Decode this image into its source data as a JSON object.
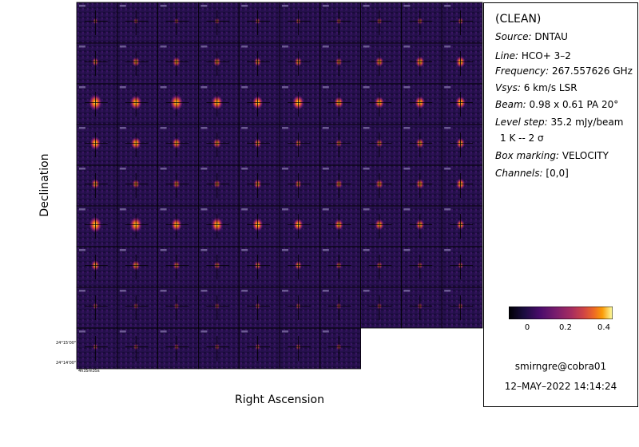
{
  "chart_data": {
    "type": "heatmap",
    "title": "(CLEAN)",
    "xlabel": "Right Ascension",
    "ylabel": "Declination",
    "layout": {
      "columns": 10,
      "rows_full": 8,
      "last_row_panels": 7
    },
    "peak_intensity_by_row": [
      [
        0.03,
        0.03,
        0.03,
        0.04,
        0.04,
        0.04,
        0.04,
        0.05,
        0.06,
        0.06
      ],
      [
        0.12,
        0.16,
        0.18,
        0.15,
        0.14,
        0.15,
        0.12,
        0.18,
        0.22,
        0.24
      ],
      [
        0.42,
        0.35,
        0.4,
        0.34,
        0.3,
        0.35,
        0.24,
        0.25,
        0.28,
        0.27
      ],
      [
        0.3,
        0.27,
        0.22,
        0.18,
        0.15,
        0.1,
        0.1,
        0.12,
        0.18,
        0.2
      ],
      [
        0.18,
        0.14,
        0.14,
        0.12,
        0.16,
        0.12,
        0.14,
        0.16,
        0.18,
        0.22
      ],
      [
        0.4,
        0.38,
        0.3,
        0.36,
        0.3,
        0.26,
        0.22,
        0.22,
        0.2,
        0.18
      ],
      [
        0.2,
        0.18,
        0.12,
        0.1,
        0.12,
        0.14,
        0.08,
        0.08,
        0.06,
        0.06
      ],
      [
        0.04,
        0.04,
        0.04,
        0.04,
        0.04,
        0.04,
        0.04,
        0.04,
        0.04,
        0.04
      ],
      [
        0.04,
        0.04,
        0.04,
        0.04,
        0.04,
        0.04,
        0.04
      ]
    ],
    "y_tick_labels": [
      "24°15'00\"",
      "24°14'00\""
    ],
    "x_tick_labels": [
      "4h35m35s"
    ],
    "colorbar": {
      "colormap": "inferno",
      "range": [
        -0.1,
        0.45
      ],
      "ticks": [
        "0",
        "0.2",
        "0.4"
      ]
    }
  },
  "info": {
    "title": "(CLEAN)",
    "source_label": "Source:",
    "source": "DNTAU",
    "line_label": "Line:",
    "line": "HCO+ 3–2",
    "frequency_label": "Frequency:",
    "frequency": "267.557626 GHz",
    "vsys_label": "Vsys:",
    "vsys": "6 km/s LSR",
    "beam_label": "Beam:",
    "beam": "0.98 x 0.61 PA 20°",
    "level_label": "Level step:",
    "level": "35.2 mJy/beam",
    "contour": "1 K   --   2 σ",
    "box_label": "Box marking:",
    "box": "VELOCITY",
    "channels_label": "Channels:",
    "channels": "[0,0]"
  },
  "footer": {
    "user": "smirngre@cobra01",
    "date": "12–MAY–2022 14:14:24"
  },
  "colors": {
    "panel_bg": "#1a0b3a",
    "frame": "#000000"
  }
}
